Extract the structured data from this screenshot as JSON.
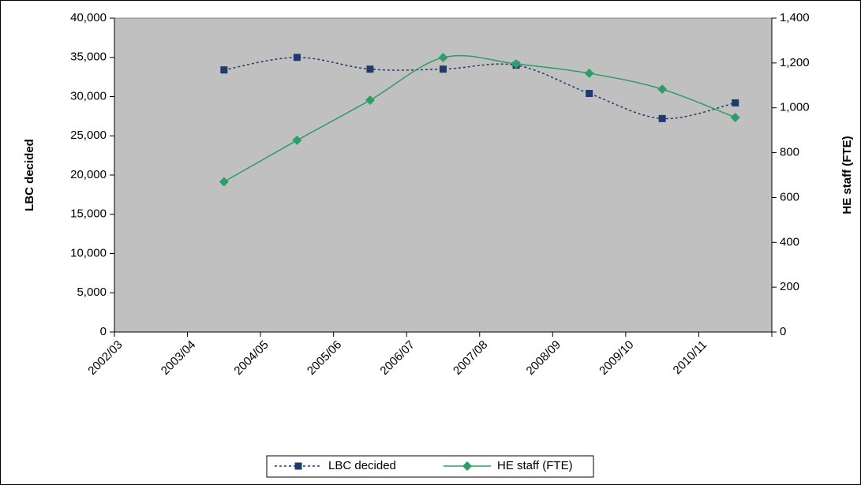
{
  "chart_data": {
    "type": "line",
    "categories": [
      "2002/03",
      "2003/04",
      "2004/05",
      "2005/06",
      "2006/07",
      "2007/08",
      "2008/09",
      "2009/10",
      "2010/11"
    ],
    "ylabel": "LBC decided",
    "y2label": "HE staff (FTE)",
    "ylim": [
      0,
      40000
    ],
    "yticks": [
      0,
      {
        "value": 5000,
        "label": "5,000"
      },
      {
        "value": 10000,
        "label": "10,000"
      },
      {
        "value": 15000,
        "label": "15,000"
      },
      {
        "value": 20000,
        "label": "20,000"
      },
      {
        "value": 25000,
        "label": "25,000"
      },
      {
        "value": 30000,
        "label": "30,000"
      },
      {
        "value": 35000,
        "label": "35,000"
      },
      {
        "value": 40000,
        "label": "40,000"
      }
    ],
    "y2lim": [
      0,
      1400
    ],
    "y2ticks": [
      0,
      200,
      400,
      600,
      800,
      {
        "value": 1000,
        "label": "1,000"
      },
      {
        "value": 1200,
        "label": "1,200"
      },
      {
        "value": 1400,
        "label": "1,400"
      }
    ],
    "series": [
      {
        "name": "LBC decided",
        "color": "#1f3a6b",
        "values": [
          null,
          33400,
          35000,
          33500,
          33500,
          34000,
          30400,
          27200,
          29200
        ]
      },
      {
        "name": "HE staff (FTE)",
        "color": "#2e9e68",
        "axis": "y2",
        "values": [
          null,
          670,
          855,
          1034,
          1224,
          1196,
          1154,
          1083,
          957
        ]
      }
    ],
    "grid": false,
    "legend": "bottom"
  }
}
